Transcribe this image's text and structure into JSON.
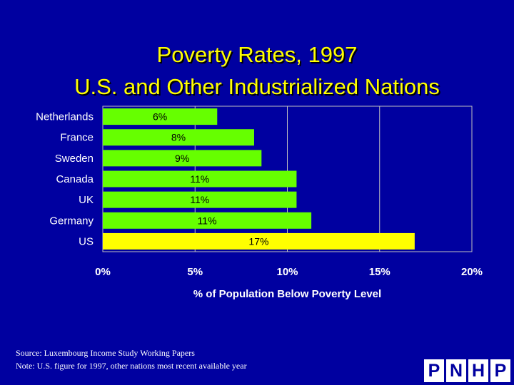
{
  "title": {
    "line1": "Poverty Rates, 1997",
    "line2": "U.S. and Other Industrialized Nations"
  },
  "chart_data": {
    "type": "bar",
    "orientation": "horizontal",
    "title": "Poverty Rates, 1997 U.S. and Other Industrialized Nations",
    "categories": [
      "Netherlands",
      "France",
      "Sweden",
      "Canada",
      "UK",
      "Germany",
      "US"
    ],
    "values": [
      6.2,
      8.2,
      8.6,
      10.5,
      10.5,
      11.3,
      16.9
    ],
    "data_labels": [
      "6%",
      "8%",
      "9%",
      "11%",
      "11%",
      "11%",
      "17%"
    ],
    "bar_colors": [
      "#66ff00",
      "#66ff00",
      "#66ff00",
      "#66ff00",
      "#66ff00",
      "#66ff00",
      "#ffff00"
    ],
    "xlim": [
      0,
      20
    ],
    "xticks": [
      0,
      5,
      10,
      15,
      20
    ],
    "xtick_labels": [
      "0%",
      "5%",
      "10%",
      "15%",
      "20%"
    ],
    "xlabel": "% of Population Below Poverty Level",
    "ylabel": "",
    "grid": true
  },
  "footnotes": {
    "source": "Source: Luxembourg Income Study Working Papers",
    "note": "Note: U.S. figure for 1997, other nations most recent available year"
  },
  "logo": {
    "letters": [
      "P",
      "N",
      "H",
      "P"
    ]
  },
  "colors": {
    "background": "#0000a0",
    "title": "#ffff00",
    "bar": "#66ff00",
    "highlight_bar": "#ffff00"
  }
}
